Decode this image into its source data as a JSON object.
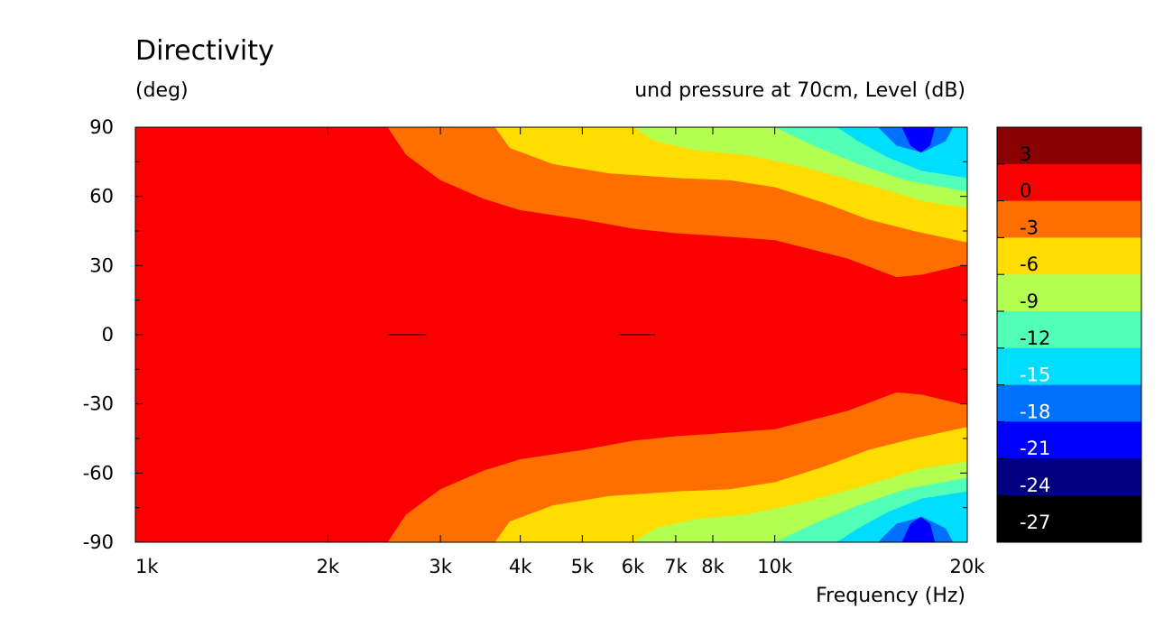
{
  "chart_data": {
    "type": "heatmap",
    "title": "Directivity",
    "ylabel": "(deg)",
    "colorbar_label": "und pressure at 70cm, Level  (dB)",
    "xlabel": "Frequency  (Hz)",
    "x_scale": "log",
    "xlim": [
      1000,
      20000
    ],
    "ylim": [
      -90,
      90
    ],
    "x_ticks": [
      {
        "value": 1000,
        "label": "1k"
      },
      {
        "value": 2000,
        "label": "2k"
      },
      {
        "value": 3000,
        "label": "3k"
      },
      {
        "value": 4000,
        "label": "4k"
      },
      {
        "value": 5000,
        "label": "5k"
      },
      {
        "value": 6000,
        "label": "6k"
      },
      {
        "value": 7000,
        "label": "7k"
      },
      {
        "value": 8000,
        "label": "8k"
      },
      {
        "value": 10000,
        "label": "10k"
      },
      {
        "value": 20000,
        "label": "20k"
      }
    ],
    "y_ticks": [
      90,
      60,
      30,
      0,
      -30,
      -60,
      -90
    ],
    "colorbar": {
      "levels": [
        6,
        3,
        0,
        -3,
        -6,
        -9,
        -12,
        -15,
        -18,
        -21,
        -24,
        -27,
        -30
      ],
      "tick_labels": [
        "3",
        "0",
        "-3",
        "-6",
        "-9",
        "-12",
        "-15",
        "-18",
        "-21",
        "-24",
        "-27"
      ],
      "colors": [
        "#8b0000",
        "#fa0000",
        "#ff6e00",
        "#ffdd00",
        "#b2ff52",
        "#52ffb6",
        "#00ddff",
        "#0070ff",
        "#0000ff",
        "#000080",
        "#000000"
      ]
    },
    "bands": [
      {
        "level": "-3 to -6",
        "color": "#ff6e00",
        "upper_boundary": [
          [
            2480,
            90
          ],
          [
            2650,
            78
          ],
          [
            3000,
            67
          ],
          [
            3500,
            59
          ],
          [
            4000,
            54
          ],
          [
            5000,
            50
          ],
          [
            6000,
            46
          ],
          [
            7000,
            44
          ],
          [
            8000,
            43
          ],
          [
            10000,
            41
          ],
          [
            13000,
            33
          ],
          [
            15500,
            25
          ],
          [
            17000,
            26
          ],
          [
            19500,
            30
          ]
        ],
        "lower_boundary": [
          [
            2480,
            -90
          ],
          [
            2650,
            -78
          ],
          [
            3000,
            -67
          ],
          [
            3500,
            -59
          ],
          [
            4000,
            -54
          ],
          [
            5000,
            -50
          ],
          [
            6000,
            -46
          ],
          [
            7000,
            -44
          ],
          [
            8000,
            -43
          ],
          [
            10000,
            -41
          ],
          [
            13000,
            -33
          ],
          [
            15500,
            -25
          ],
          [
            17000,
            -26
          ],
          [
            19500,
            -30
          ]
        ]
      },
      {
        "level": "-6 to -9",
        "color": "#ffdd00",
        "upper_boundary": [
          [
            3650,
            90
          ],
          [
            3850,
            81
          ],
          [
            4500,
            74
          ],
          [
            5500,
            70
          ],
          [
            7000,
            68
          ],
          [
            8500,
            67
          ],
          [
            10000,
            64
          ],
          [
            12000,
            57
          ],
          [
            14000,
            50
          ],
          [
            16500,
            45
          ],
          [
            20000,
            40
          ]
        ],
        "lower_boundary": [
          [
            3650,
            -90
          ],
          [
            3850,
            -81
          ],
          [
            4500,
            -74
          ],
          [
            5500,
            -70
          ],
          [
            7000,
            -68
          ],
          [
            8500,
            -67
          ],
          [
            10000,
            -64
          ],
          [
            12000,
            -57
          ],
          [
            14000,
            -50
          ],
          [
            16500,
            -45
          ],
          [
            20000,
            -40
          ]
        ]
      },
      {
        "level": "-9 to -12",
        "color": "#b2ff52",
        "upper_boundary": [
          [
            6000,
            90
          ],
          [
            6500,
            84
          ],
          [
            7500,
            80
          ],
          [
            9000,
            78
          ],
          [
            11000,
            73
          ],
          [
            14000,
            65
          ],
          [
            17000,
            58
          ],
          [
            20000,
            55
          ]
        ],
        "lower_boundary": [
          [
            6000,
            -90
          ],
          [
            6500,
            -84
          ],
          [
            7500,
            -80
          ],
          [
            9000,
            -78
          ],
          [
            11000,
            -73
          ],
          [
            14000,
            -65
          ],
          [
            17000,
            -58
          ],
          [
            20000,
            -55
          ]
        ]
      },
      {
        "level": "-12 to -15",
        "color": "#52ffb6",
        "upper_boundary": [
          [
            10000,
            90
          ],
          [
            11500,
            82
          ],
          [
            13500,
            74
          ],
          [
            16000,
            67
          ],
          [
            20000,
            62
          ]
        ],
        "lower_boundary": [
          [
            10000,
            -90
          ],
          [
            11500,
            -82
          ],
          [
            13500,
            -74
          ],
          [
            16000,
            -67
          ],
          [
            20000,
            -62
          ]
        ]
      },
      {
        "level": "-15 to -18",
        "color": "#00ddff",
        "upper_boundary": [
          [
            12500,
            90
          ],
          [
            13500,
            84
          ],
          [
            15000,
            77
          ],
          [
            17000,
            71
          ],
          [
            20000,
            68
          ]
        ],
        "lower_boundary": [
          [
            12500,
            -90
          ],
          [
            13500,
            -84
          ],
          [
            15000,
            -77
          ],
          [
            17000,
            -71
          ],
          [
            20000,
            -68
          ]
        ]
      },
      {
        "level": "-18 to -21",
        "color": "#0070ff",
        "upper_boundary": [
          [
            14500,
            90
          ],
          [
            15500,
            82
          ],
          [
            17000,
            79
          ],
          [
            18500,
            84
          ],
          [
            19000,
            90
          ]
        ],
        "lower_boundary": [
          [
            14500,
            -90
          ],
          [
            15500,
            -82
          ],
          [
            17000,
            -79
          ],
          [
            18500,
            -84
          ],
          [
            19000,
            -90
          ]
        ]
      },
      {
        "level": "-21 to -24",
        "color": "#0000ff",
        "upper_boundary": [
          [
            15800,
            90
          ],
          [
            16300,
            82
          ],
          [
            16900,
            79
          ],
          [
            17500,
            82
          ],
          [
            17800,
            90
          ]
        ],
        "lower_boundary": [
          [
            15800,
            -90
          ],
          [
            16300,
            -82
          ],
          [
            16900,
            -79
          ],
          [
            17500,
            -82
          ],
          [
            17800,
            -90
          ]
        ]
      }
    ],
    "grid": false,
    "legend": "colorbar-right"
  }
}
